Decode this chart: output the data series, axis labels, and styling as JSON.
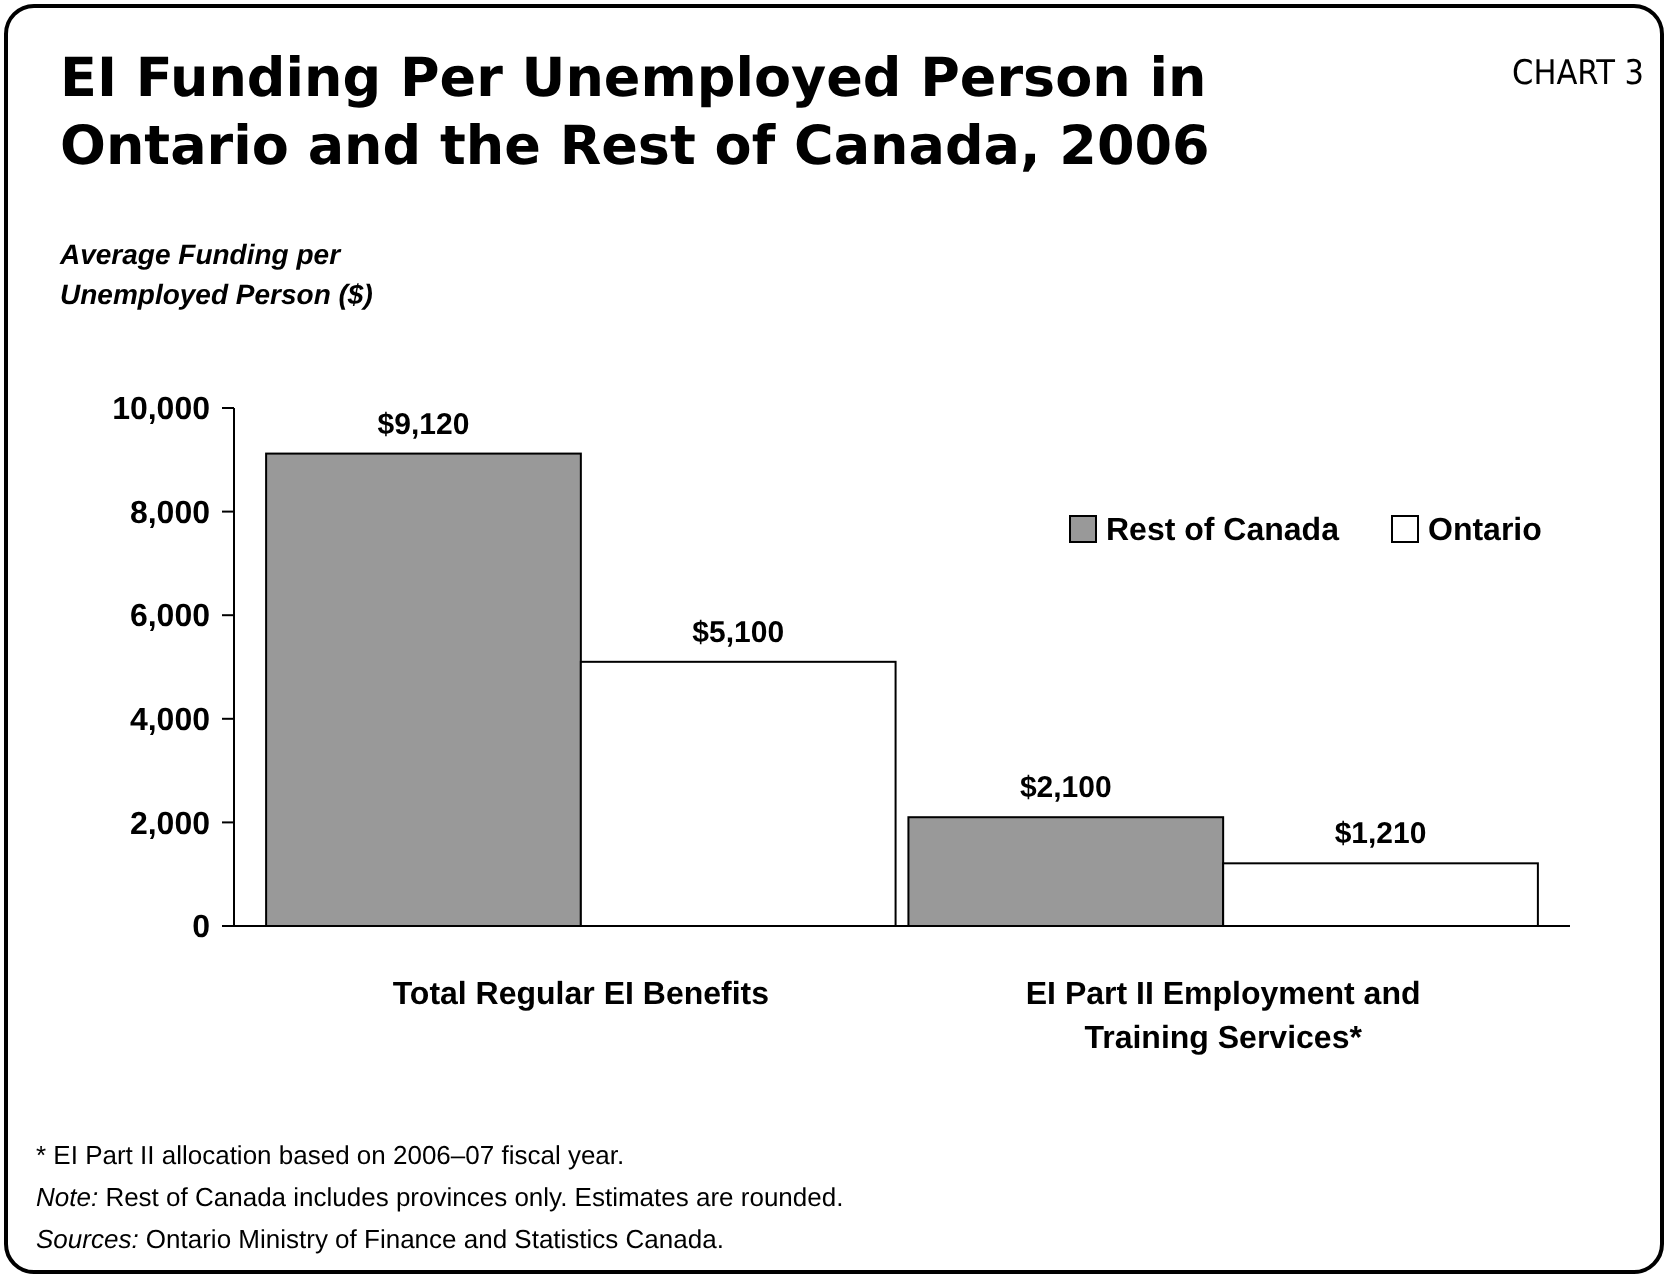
{
  "chart_data": {
    "type": "bar",
    "title": "EI Funding Per Unemployed Person in Ontario and the Rest of Canada, 2006",
    "subtitle": "CHART 3",
    "ylabel": "Average Funding per Unemployed Person ($)",
    "categories": [
      "Total Regular EI Benefits",
      "EI Part II Employment and Training Services*"
    ],
    "series": [
      {
        "name": "Rest of Canada",
        "color": "#999999",
        "values": [
          9120,
          2100
        ],
        "value_labels": [
          "$9,120",
          "$2,100"
        ]
      },
      {
        "name": "Ontario",
        "color": "#ffffff",
        "values": [
          5100,
          1210
        ],
        "value_labels": [
          "$5,100",
          "$1,210"
        ]
      }
    ],
    "ylim": [
      0,
      10000
    ],
    "yticks": [
      {
        "value": 0,
        "label": "0"
      },
      {
        "value": 2000,
        "label": "2,000"
      },
      {
        "value": 4000,
        "label": "4,000"
      },
      {
        "value": 6000,
        "label": "6,000"
      },
      {
        "value": 8000,
        "label": "8,000"
      },
      {
        "value": 10000,
        "label": "10,000"
      }
    ],
    "grid": false,
    "legend": "right",
    "annotations": [
      "* EI Part II allocation based on 2006–07 fiscal year.",
      "Note: Rest of Canada includes provinces only. Estimates are rounded.",
      "Sources: Ontario Ministry of Finance and Statistics Canada."
    ]
  }
}
